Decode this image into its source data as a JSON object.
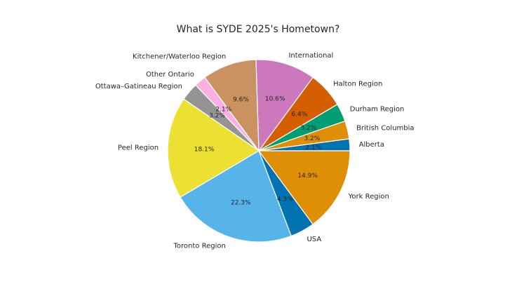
{
  "chart_data": {
    "type": "pie",
    "title": "What is SYDE 2025's Hometown?",
    "start_angle_deg": 0,
    "direction": "counterclockwise",
    "slices": [
      {
        "label": "Alberta",
        "value": 2.1,
        "pct_label": "2.1%",
        "color": "#0173b2"
      },
      {
        "label": "British Columbia",
        "value": 3.2,
        "pct_label": "3.2%",
        "color": "#de8f05"
      },
      {
        "label": "Durham Region",
        "value": 3.2,
        "pct_label": "3.2%",
        "color": "#029e73"
      },
      {
        "label": "Halton Region",
        "value": 6.4,
        "pct_label": "6.4%",
        "color": "#d55e00"
      },
      {
        "label": "International",
        "value": 10.6,
        "pct_label": "10.6%",
        "color": "#cc78bc"
      },
      {
        "label": "Kitchener/Waterloo Region",
        "value": 9.6,
        "pct_label": "9.6%",
        "color": "#ca9161"
      },
      {
        "label": "Other Ontario",
        "value": 2.1,
        "pct_label": "2.1%",
        "color": "#fbafe4"
      },
      {
        "label": "Ottawa–Gatineau Region",
        "value": 3.2,
        "pct_label": "3.2%",
        "color": "#949494"
      },
      {
        "label": "Peel Region",
        "value": 18.1,
        "pct_label": "18.1%",
        "color": "#ece133"
      },
      {
        "label": "Toronto Region",
        "value": 22.3,
        "pct_label": "22.3%",
        "color": "#56b4e9"
      },
      {
        "label": "USA",
        "value": 4.3,
        "pct_label": "4.3%",
        "color": "#0173b2"
      },
      {
        "label": "York Region",
        "value": 14.9,
        "pct_label": "14.9%",
        "color": "#de8f05"
      }
    ]
  }
}
